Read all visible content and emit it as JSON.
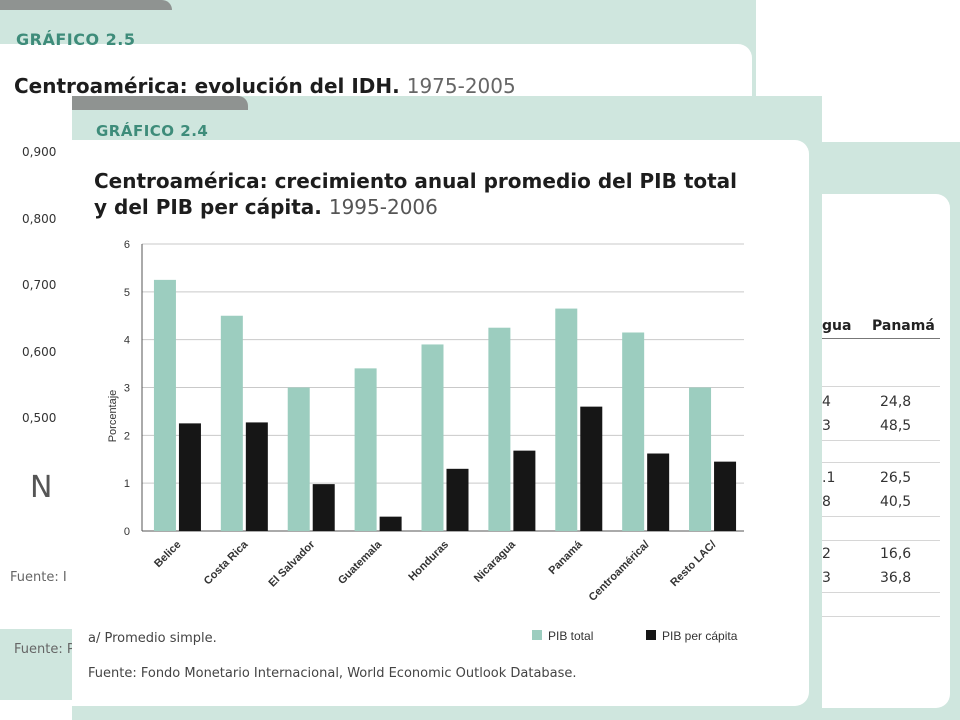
{
  "back_card": {
    "label": "GRÁFICO 2.5",
    "title": "Centroamérica: evolución del IDH.",
    "title_years": "1975-2005",
    "y_ticks": [
      "0,900",
      "0,800",
      "0,700",
      "0,600",
      "0,500"
    ],
    "glyph": "N",
    "source": "Fuente: I",
    "source2": "Fuente: P"
  },
  "right_card": {
    "headers": [
      "gua",
      "Panamá"
    ],
    "rows": [
      [
        "4",
        "24,8"
      ],
      [
        "3",
        "48,5"
      ],
      [
        ".1",
        "26,5"
      ],
      [
        "8",
        "40,5"
      ],
      [
        "2",
        "16,6"
      ],
      [
        "3",
        "36,8"
      ]
    ]
  },
  "front_card": {
    "label": "GRÁFICO 2.4",
    "title_line1": "Centroamérica: crecimiento anual promedio del PIB total",
    "title_line2": "y del PIB per cápita.",
    "title_years": "1995-2006",
    "footnote": "a/ Promedio simple.",
    "source": "Fuente: Fondo Monetario Internacional, World Economic Outlook Database."
  },
  "colors": {
    "pib_total": "#9ccdbf",
    "pib_per_capita": "#161616",
    "accent": "#3e8c7a",
    "card_bg": "#cfe6de"
  },
  "chart_data": {
    "type": "bar",
    "categories": [
      "Belice",
      "Costa Rica",
      "El Salvador",
      "Guatemala",
      "Honduras",
      "Nicaragua",
      "Panamá",
      "Centroamérica/",
      "Resto LAC/"
    ],
    "series": [
      {
        "name": "PIB total",
        "values": [
          5.25,
          4.5,
          3.0,
          3.4,
          3.9,
          4.25,
          4.65,
          4.15,
          3.0
        ]
      },
      {
        "name": "PIB per cápita",
        "values": [
          2.25,
          2.27,
          0.98,
          0.3,
          1.3,
          1.68,
          2.6,
          1.62,
          1.45
        ]
      }
    ],
    "ylabel": "Porcentaje",
    "ylim": [
      0,
      6
    ],
    "yticks": [
      0,
      1,
      2,
      3,
      4,
      5,
      6
    ],
    "grid": true,
    "legend_position": "bottom-right"
  }
}
